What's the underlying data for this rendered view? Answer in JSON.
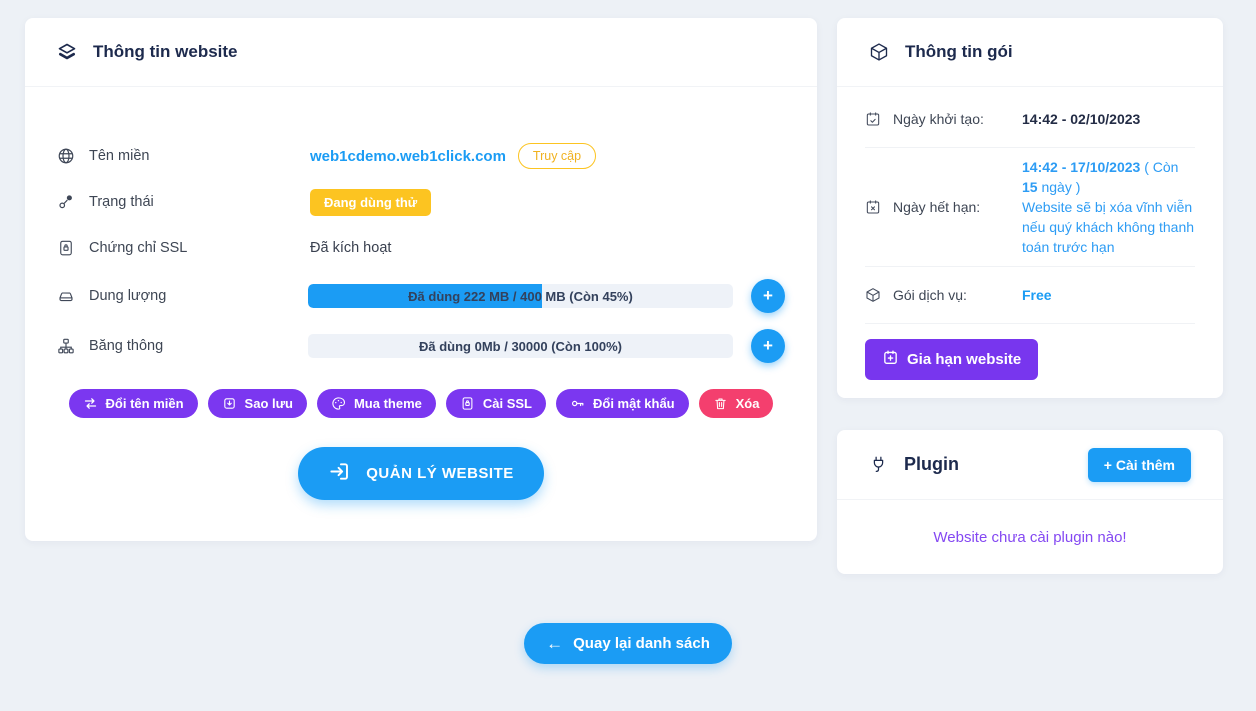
{
  "colors": {
    "blue": "#1b9cf4",
    "purple": "#7b37f0",
    "pink": "#f43f6e",
    "amber": "#fcc421",
    "navy": "#1d2a4d",
    "plugin_purple": "#8448f2"
  },
  "website_card": {
    "title": "Thông tin website",
    "title_icon": "layers-icon",
    "plus_label": "+",
    "domain": {
      "label": "Tên miền",
      "icon": "globe-icon",
      "value": "web1cdemo.web1click.com",
      "visit_label": "Truy cập"
    },
    "status": {
      "label": "Trạng thái",
      "icon": "share-nodes-icon",
      "badge": "Đang dùng thử"
    },
    "ssl": {
      "label": "Chứng chỉ SSL",
      "icon": "certificate-lock-icon",
      "value": "Đã kích hoạt"
    },
    "storage": {
      "label": "Dung lượng",
      "icon": "drive-icon",
      "bar_text": "Đã dùng 222 MB / 400 MB (Còn 45%)",
      "percent_used": 55
    },
    "bandwidth": {
      "label": "Băng thông",
      "icon": "sitemap-icon",
      "bar_text": "Đã dùng 0Mb / 30000 (Còn 100%)",
      "percent_used": 0
    },
    "actions": [
      {
        "label": "Đổi tên miền",
        "icon": "swap-arrows-icon"
      },
      {
        "label": "Sao lưu",
        "icon": "backup-download-icon"
      },
      {
        "label": "Mua theme",
        "icon": "palette-icon"
      },
      {
        "label": "Cài SSL",
        "icon": "lock-icon"
      },
      {
        "label": "Đổi mật khẩu",
        "icon": "key-icon"
      },
      {
        "label": "Xóa",
        "icon": "trash-icon"
      }
    ],
    "manage_label": "QUẢN LÝ WEBSITE",
    "manage_icon": "login-icon"
  },
  "package_card": {
    "title": "Thông tin gói",
    "title_icon": "cube-icon",
    "created": {
      "label": "Ngày khởi tạo:",
      "icon": "calendar-check-icon",
      "value": "14:42 - 02/10/2023"
    },
    "expiry": {
      "label": "Ngày hết hạn:",
      "icon": "calendar-x-icon",
      "date": "14:42 - 17/10/2023",
      "remain_prefix": " ( Còn ",
      "remain_days": "15",
      "remain_suffix": " ngày )",
      "warning": "Website sẽ bị xóa vĩnh viễn nếu quý khách không thanh toán trước hạn"
    },
    "plan": {
      "label": "Gói dịch vụ:",
      "icon": "cube-icon",
      "value": "Free"
    },
    "renew_label": "Gia hạn website",
    "renew_icon": "calendar-plus-icon"
  },
  "plugin_card": {
    "title": "Plugin",
    "title_icon": "plug-icon",
    "install_label": "+ Cài thêm",
    "empty_text": "Website chưa cài plugin nào!"
  },
  "footer": {
    "back_arrow": "←",
    "back_label": "Quay lại danh sách"
  }
}
